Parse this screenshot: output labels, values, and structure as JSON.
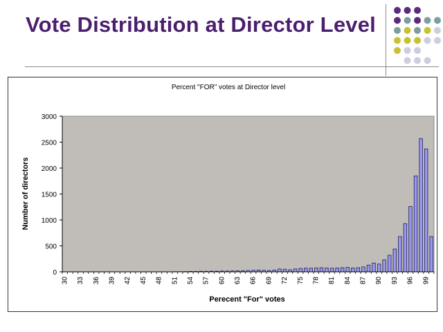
{
  "slide": {
    "title": "Vote Distribution at Director Level"
  },
  "colors": {
    "title": "#4b1f6e",
    "plot_area": "#c0bcb8",
    "bar_fill": "#9999ee",
    "bar_stroke": "#1c1c5a",
    "dot_purple": "#5c2a7e",
    "dot_teal": "#7b9f9f",
    "dot_olive": "#c7c231",
    "dot_lavender": "#cdcde0"
  },
  "decorations": {
    "dot_rows": [
      [
        "dot_purple",
        "dot_purple",
        "dot_purple",
        "",
        ""
      ],
      [
        "dot_purple",
        "dot_teal",
        "dot_purple",
        "dot_teal",
        "dot_teal"
      ],
      [
        "dot_teal",
        "dot_olive",
        "dot_teal",
        "dot_olive",
        "dot_lavender"
      ],
      [
        "dot_olive",
        "dot_olive",
        "dot_olive",
        "dot_lavender",
        "dot_lavender"
      ],
      [
        "dot_olive",
        "dot_lavender",
        "dot_lavender",
        "",
        ""
      ],
      [
        "",
        "dot_lavender",
        "dot_lavender",
        "dot_lavender",
        ""
      ]
    ]
  },
  "chart_data": {
    "type": "bar",
    "title": "Percent \"FOR\" votes at Director level",
    "xlabel": "Perecent \"For\" votes",
    "ylabel": "Number of directors",
    "ylim": [
      0,
      3000
    ],
    "yticks": [
      0,
      500,
      1000,
      1500,
      2000,
      2500,
      3000
    ],
    "grid": false,
    "legend": "none",
    "categories": [
      30,
      31,
      32,
      33,
      34,
      35,
      36,
      37,
      38,
      39,
      40,
      41,
      42,
      43,
      44,
      45,
      46,
      47,
      48,
      49,
      50,
      51,
      52,
      53,
      54,
      55,
      56,
      57,
      58,
      59,
      60,
      61,
      62,
      63,
      64,
      65,
      66,
      67,
      68,
      69,
      70,
      71,
      72,
      73,
      74,
      75,
      76,
      77,
      78,
      79,
      80,
      81,
      82,
      83,
      84,
      85,
      86,
      87,
      88,
      89,
      90,
      91,
      92,
      93,
      94,
      95,
      96,
      97,
      98,
      99,
      100
    ],
    "tick_labels": [
      "30",
      "33",
      "36",
      "39",
      "42",
      "45",
      "48",
      "51",
      "54",
      "57",
      "60",
      "63",
      "66",
      "69",
      "72",
      "75",
      "78",
      "81",
      "84",
      "87",
      "90",
      "93",
      "96",
      "99"
    ],
    "values": [
      0,
      0,
      0,
      0,
      0,
      0,
      0,
      0,
      0,
      0,
      0,
      0,
      0,
      0,
      0,
      0,
      0,
      0,
      0,
      0,
      0,
      3,
      3,
      5,
      8,
      8,
      10,
      10,
      12,
      12,
      15,
      15,
      18,
      20,
      22,
      25,
      30,
      35,
      30,
      25,
      35,
      55,
      50,
      40,
      55,
      65,
      70,
      70,
      75,
      80,
      75,
      70,
      75,
      80,
      85,
      75,
      80,
      95,
      130,
      170,
      150,
      230,
      320,
      440,
      680,
      930,
      1260,
      1850,
      2570,
      2370,
      680
    ]
  }
}
